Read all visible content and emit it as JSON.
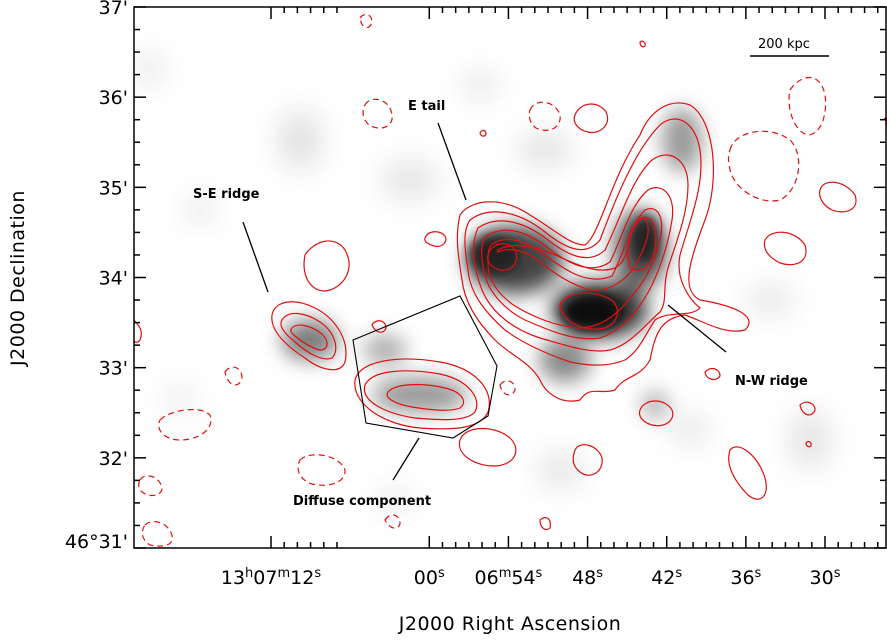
{
  "chart_data": {
    "type": "heatmap",
    "title": "",
    "xlabel": "J2000 Right Ascension",
    "ylabel": "J2000 Declination",
    "x_ticks": [
      {
        "h": "13",
        "m": "07",
        "s": "12",
        "ra_offset_s": -12,
        "label_parts": [
          "13",
          "h",
          "07",
          "m",
          "12",
          "s"
        ]
      },
      {
        "h": "",
        "m": "",
        "s": "00",
        "ra_offset_s": 0,
        "label_parts": [
          "00",
          "s"
        ]
      },
      {
        "h": "",
        "m": "06",
        "s": "54",
        "ra_offset_s": 6,
        "label_parts": [
          "06",
          "m",
          "54",
          "s"
        ]
      },
      {
        "h": "",
        "m": "",
        "s": "48",
        "ra_offset_s": 12,
        "label_parts": [
          "48",
          "s"
        ]
      },
      {
        "h": "",
        "m": "",
        "s": "42",
        "ra_offset_s": 18,
        "label_parts": [
          "42",
          "s"
        ]
      },
      {
        "h": "",
        "m": "",
        "s": "36",
        "ra_offset_s": 24,
        "label_parts": [
          "36",
          "s"
        ]
      },
      {
        "h": "",
        "m": "",
        "s": "30",
        "ra_offset_s": 30,
        "label_parts": [
          "30",
          "s"
        ]
      }
    ],
    "y_ticks": [
      {
        "label": "46°31'",
        "dec_arcmin": 31
      },
      {
        "label": "32'",
        "dec_arcmin": 32
      },
      {
        "label": "33'",
        "dec_arcmin": 33
      },
      {
        "label": "34'",
        "dec_arcmin": 34
      },
      {
        "label": "35'",
        "dec_arcmin": 35
      },
      {
        "label": "36'",
        "dec_arcmin": 36
      },
      {
        "label": "37'",
        "dec_arcmin": 37
      }
    ],
    "annotations": [
      {
        "id": "se",
        "text": "S-E ridge"
      },
      {
        "id": "et",
        "text": "E tail"
      },
      {
        "id": "nw",
        "text": "N-W ridge"
      },
      {
        "id": "dc",
        "text": "Diffuse component"
      }
    ],
    "scale_bar": {
      "label": "200 kpc"
    },
    "contour_color": "#dd1111",
    "colormap": "grayscale (white low, black high)"
  }
}
